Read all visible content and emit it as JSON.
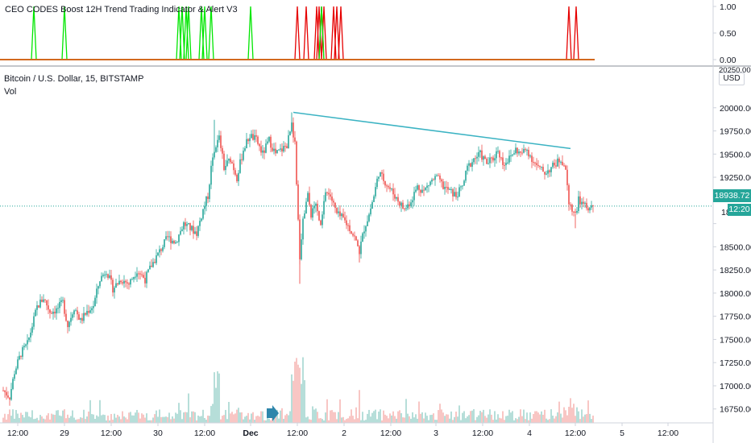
{
  "top_pane": {
    "title": "CEO CODES Boost 12H Trend Trading Indicator & Alert V3",
    "ticks": [
      "1.00",
      "0.50",
      "0.00"
    ],
    "colors": {
      "bull": "#00e600",
      "bear": "#e60000",
      "baseline": "#d2691e"
    }
  },
  "main_pane": {
    "title": "Bitcoin / U.S. Dollar, 15, BITSTAMP",
    "sub_title": "Vol",
    "currency_badge": "USD",
    "price_tag": "18938.72",
    "countdown_tag": "12:20",
    "partial_top_tick": "20250.00",
    "partial_tick_under_tag": "18"
  },
  "colors": {
    "up": "#26a69a",
    "down": "#ef5350",
    "vol_up": "#a5d6d0",
    "vol_down": "#f6b8b6",
    "trendline": "#3bb3c3",
    "price_line": "#26a69a",
    "arrow": "#2e86ab"
  },
  "icons": {
    "replay_marker": "right-arrow-icon"
  },
  "chart_data": [
    {
      "type": "line",
      "name": "indicator-signals",
      "ylim": [
        0,
        1
      ],
      "yticks": [
        1.0,
        0.5,
        0.0
      ],
      "signals": [
        {
          "x": 42,
          "side": "bull"
        },
        {
          "x": 80,
          "side": "bull"
        },
        {
          "x": 222,
          "side": "bull"
        },
        {
          "x": 226,
          "side": "bull"
        },
        {
          "x": 231,
          "side": "bull"
        },
        {
          "x": 234,
          "side": "bull"
        },
        {
          "x": 250,
          "side": "bull"
        },
        {
          "x": 254,
          "side": "bull"
        },
        {
          "x": 262,
          "side": "bull"
        },
        {
          "x": 311,
          "side": "bull"
        },
        {
          "x": 369,
          "side": "bear"
        },
        {
          "x": 380,
          "side": "bear"
        },
        {
          "x": 393,
          "side": "bear"
        },
        {
          "x": 396,
          "side": "bear"
        },
        {
          "x": 399,
          "side": "bear"
        },
        {
          "x": 402,
          "side": "bear"
        },
        {
          "x": 414,
          "side": "bear"
        },
        {
          "x": 418,
          "side": "bear"
        },
        {
          "x": 423,
          "side": "bear"
        },
        {
          "x": 706,
          "side": "bear"
        },
        {
          "x": 715,
          "side": "bear"
        },
        {
          "x": 399,
          "side": "bull"
        }
      ]
    },
    {
      "type": "candlestick",
      "name": "BTCUSD-15m",
      "ylim": [
        16600,
        20250
      ],
      "yticks": [
        20000,
        19750,
        19500,
        19250,
        19000,
        18750,
        18500,
        18250,
        18000,
        17750,
        17500,
        17250,
        17000,
        16750
      ],
      "ytick_labels": [
        "20000.00",
        "19750.00",
        "19500.00",
        "19250.00",
        "19000.00",
        "18750.00",
        "18500.00",
        "18250.00",
        "18000.00",
        "17750.00",
        "17500.00",
        "17250.00",
        "17000.00",
        "16750.00"
      ],
      "xticks": [
        {
          "label": "12:00",
          "x": 22
        },
        {
          "label": "29",
          "x": 80
        },
        {
          "label": "12:00",
          "x": 138
        },
        {
          "label": "30",
          "x": 196
        },
        {
          "label": "12:00",
          "x": 254
        },
        {
          "label": "Dec",
          "x": 311
        },
        {
          "label": "12:00",
          "x": 369
        },
        {
          "label": "2",
          "x": 427
        },
        {
          "label": "12:00",
          "x": 485
        },
        {
          "label": "3",
          "x": 541
        },
        {
          "label": "12:00",
          "x": 599
        },
        {
          "label": "4",
          "x": 657
        },
        {
          "label": "12:00",
          "x": 714
        },
        {
          "label": "5",
          "x": 772
        },
        {
          "label": "12:00",
          "x": 829
        }
      ],
      "path_anchors": [
        [
          4,
          16950
        ],
        [
          12,
          16880
        ],
        [
          18,
          17150
        ],
        [
          26,
          17350
        ],
        [
          34,
          17450
        ],
        [
          40,
          17650
        ],
        [
          46,
          17850
        ],
        [
          54,
          17950
        ],
        [
          62,
          17800
        ],
        [
          70,
          17820
        ],
        [
          78,
          17900
        ],
        [
          84,
          17650
        ],
        [
          92,
          17850
        ],
        [
          100,
          17700
        ],
        [
          108,
          17800
        ],
        [
          116,
          17870
        ],
        [
          124,
          18150
        ],
        [
          132,
          18250
        ],
        [
          140,
          18050
        ],
        [
          150,
          18150
        ],
        [
          160,
          18100
        ],
        [
          170,
          18250
        ],
        [
          180,
          18150
        ],
        [
          188,
          18300
        ],
        [
          198,
          18450
        ],
        [
          208,
          18600
        ],
        [
          218,
          18550
        ],
        [
          228,
          18750
        ],
        [
          236,
          18700
        ],
        [
          244,
          18650
        ],
        [
          252,
          18900
        ],
        [
          258,
          19050
        ],
        [
          262,
          19350
        ],
        [
          266,
          19500
        ],
        [
          272,
          19700
        ],
        [
          278,
          19350
        ],
        [
          286,
          19450
        ],
        [
          294,
          19250
        ],
        [
          302,
          19550
        ],
        [
          310,
          19700
        ],
        [
          318,
          19650
        ],
        [
          326,
          19500
        ],
        [
          334,
          19650
        ],
        [
          342,
          19500
        ],
        [
          350,
          19550
        ],
        [
          356,
          19600
        ],
        [
          362,
          19800
        ],
        [
          366,
          19600
        ],
        [
          368,
          19150
        ],
        [
          372,
          18400
        ],
        [
          376,
          18800
        ],
        [
          382,
          19050
        ],
        [
          386,
          18850
        ],
        [
          392,
          18950
        ],
        [
          398,
          18700
        ],
        [
          404,
          19100
        ],
        [
          410,
          19050
        ],
        [
          418,
          18850
        ],
        [
          426,
          18800
        ],
        [
          434,
          18700
        ],
        [
          440,
          18600
        ],
        [
          446,
          18450
        ],
        [
          452,
          18700
        ],
        [
          458,
          18850
        ],
        [
          464,
          19050
        ],
        [
          470,
          19300
        ],
        [
          478,
          19200
        ],
        [
          486,
          19100
        ],
        [
          494,
          19000
        ],
        [
          502,
          18900
        ],
        [
          510,
          19000
        ],
        [
          518,
          19150
        ],
        [
          526,
          19100
        ],
        [
          534,
          19200
        ],
        [
          542,
          19250
        ],
        [
          550,
          19150
        ],
        [
          558,
          19100
        ],
        [
          566,
          19050
        ],
        [
          574,
          19150
        ],
        [
          580,
          19350
        ],
        [
          588,
          19450
        ],
        [
          596,
          19500
        ],
        [
          604,
          19400
        ],
        [
          612,
          19450
        ],
        [
          618,
          19550
        ],
        [
          624,
          19400
        ],
        [
          632,
          19450
        ],
        [
          640,
          19550
        ],
        [
          646,
          19500
        ],
        [
          654,
          19550
        ],
        [
          660,
          19450
        ],
        [
          668,
          19350
        ],
        [
          676,
          19300
        ],
        [
          684,
          19350
        ],
        [
          690,
          19400
        ],
        [
          696,
          19450
        ],
        [
          702,
          19350
        ],
        [
          706,
          19000
        ],
        [
          710,
          18900
        ],
        [
          714,
          18850
        ],
        [
          718,
          19000
        ],
        [
          724,
          18950
        ],
        [
          730,
          18900
        ],
        [
          736,
          18938.72
        ]
      ],
      "trendline": {
        "x1": 364,
        "y1": 19950,
        "x2": 708,
        "y2": 19560
      },
      "last_price": 18938.72
    }
  ]
}
